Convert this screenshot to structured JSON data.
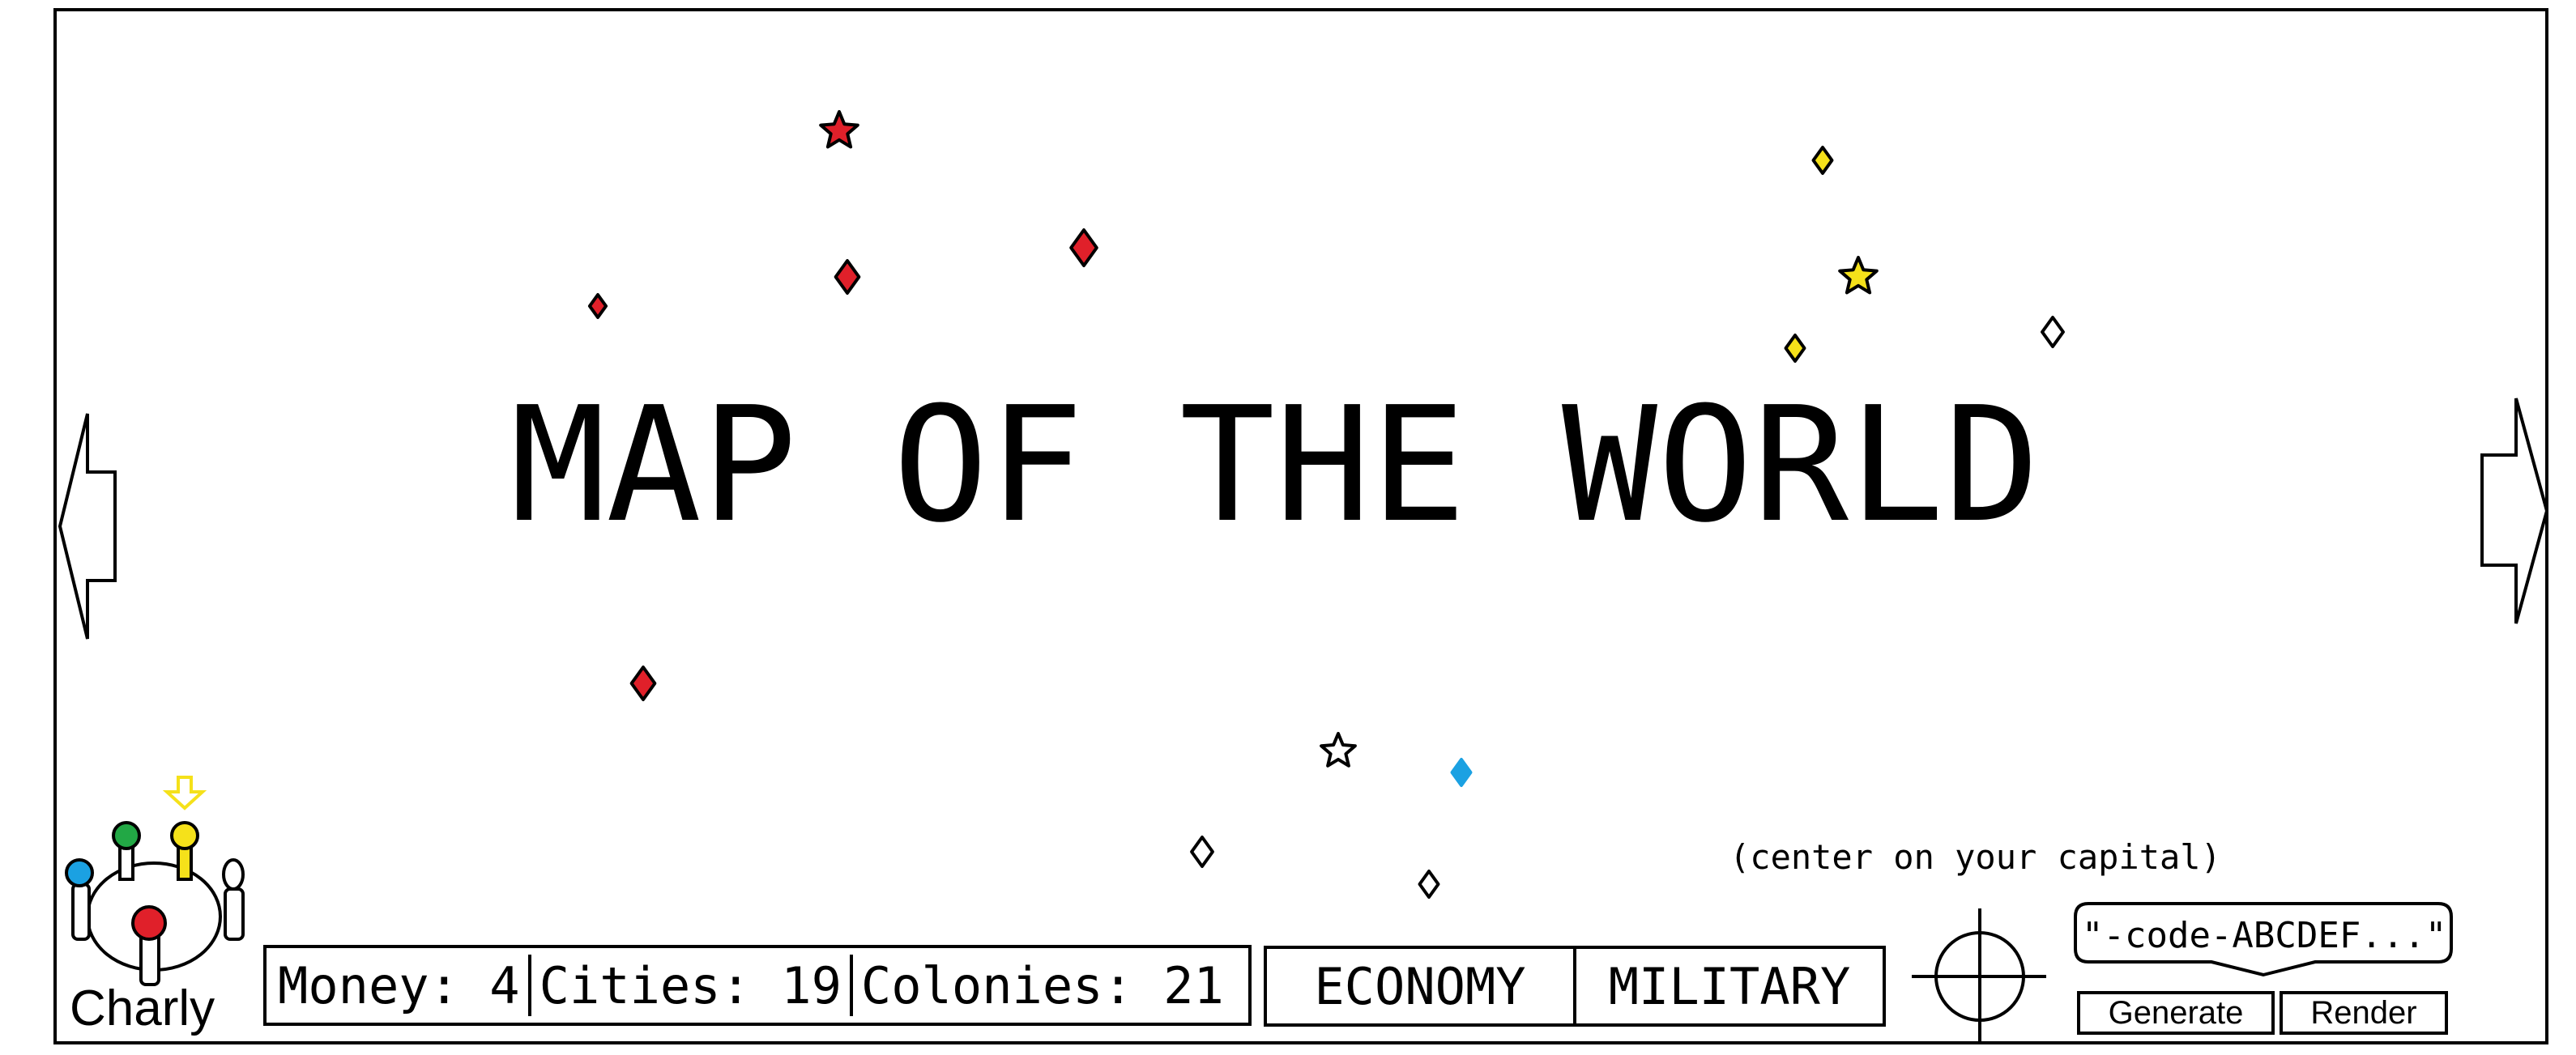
{
  "map": {
    "title": "MAP OF THE WORLD",
    "markers": [
      {
        "shape": "star",
        "color": "#e0202a",
        "name": "red-capital-star-icon"
      },
      {
        "shape": "diamond",
        "color": "#e0202a",
        "name": "red-city-diamond-icon"
      },
      {
        "shape": "diamond",
        "color": "#e0202a",
        "name": "red-city-diamond-icon"
      },
      {
        "shape": "diamond",
        "color": "#e0202a",
        "name": "red-city-diamond-icon"
      },
      {
        "shape": "diamond",
        "color": "#e0202a",
        "name": "red-city-diamond-icon"
      },
      {
        "shape": "diamond",
        "color": "#f5e11a",
        "name": "yellow-city-diamond-icon"
      },
      {
        "shape": "star",
        "color": "#f5e11a",
        "name": "yellow-capital-star-icon"
      },
      {
        "shape": "diamond",
        "color": "#f5e11a",
        "name": "yellow-city-diamond-icon"
      },
      {
        "shape": "diamond",
        "color": "#ffffff",
        "name": "white-city-diamond-icon"
      },
      {
        "shape": "star",
        "color": "#ffffff",
        "name": "white-capital-star-icon"
      },
      {
        "shape": "diamond",
        "color": "#1ba1e2",
        "name": "blue-city-diamond-icon"
      },
      {
        "shape": "diamond",
        "color": "#ffffff",
        "name": "white-city-diamond-icon"
      },
      {
        "shape": "diamond",
        "color": "#ffffff",
        "name": "white-city-diamond-icon"
      }
    ]
  },
  "player": {
    "name": "Charly",
    "colors": {
      "red": "#e0202a",
      "blue": "#1ba1e2",
      "green": "#22a845",
      "yellow": "#f5e11a",
      "white": "#ffffff"
    }
  },
  "stats": {
    "money": "Money: 4",
    "cities": "Cities: 19",
    "colonies": "Colonies: 21"
  },
  "tabs": {
    "economy": "ECONOMY",
    "military": "MILITARY"
  },
  "center": {
    "hint": "(center on your capital)"
  },
  "code": {
    "value": "\"-code-ABCDEF...\"",
    "generate_label": "Generate",
    "render_label": "Render"
  }
}
